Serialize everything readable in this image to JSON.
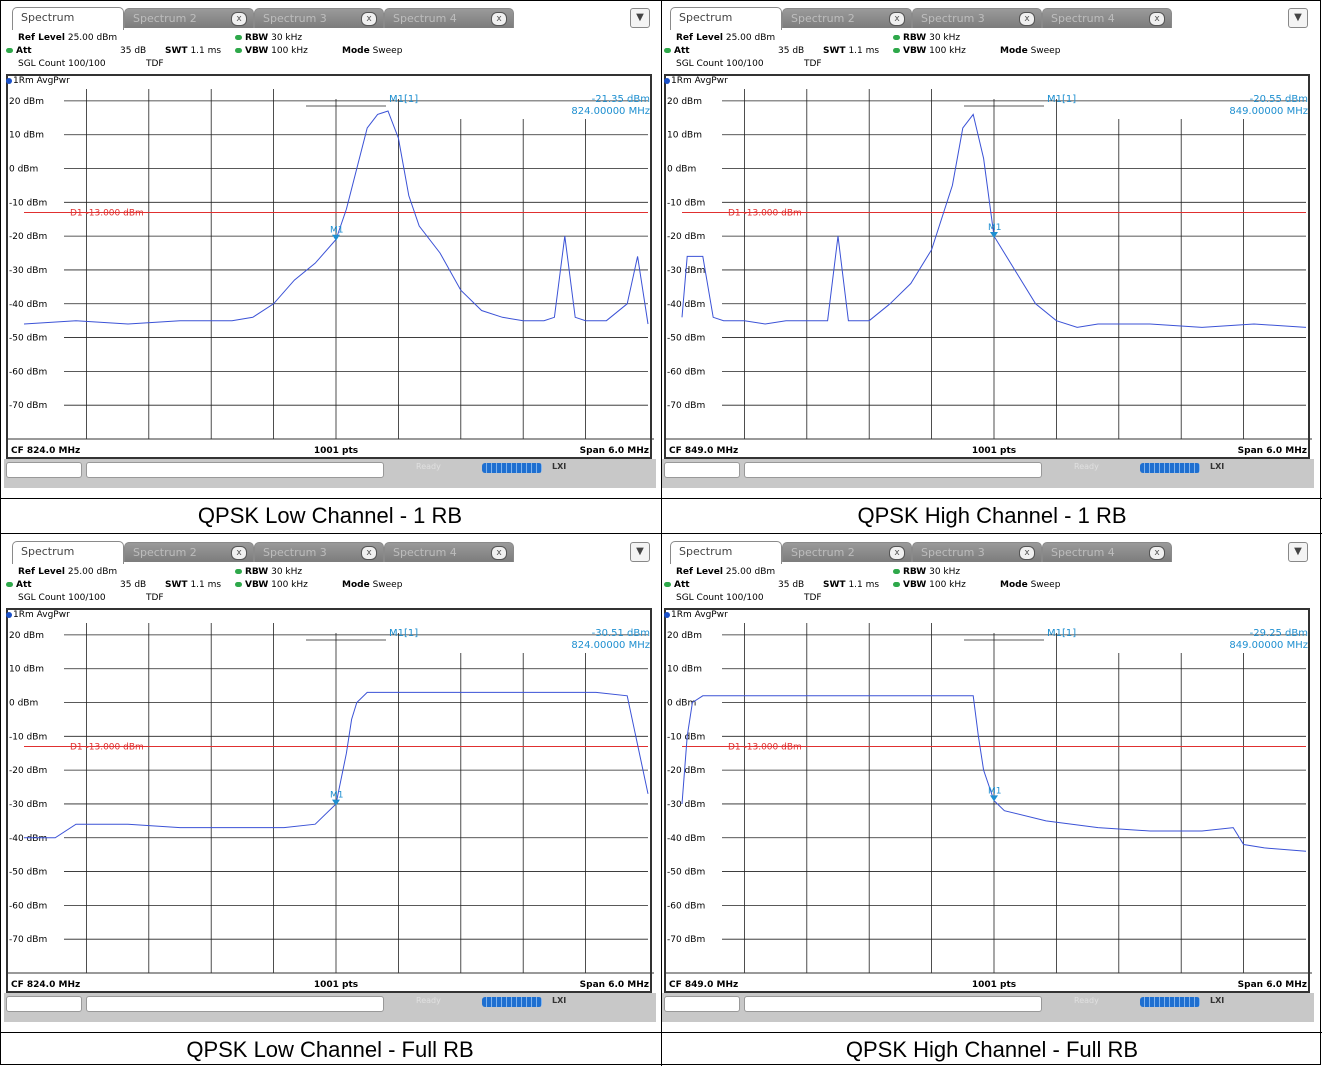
{
  "captions": [
    "QPSK Low Channel - 1 RB",
    "QPSK High Channel - 1 RB",
    "QPSK Low Channel - Full RB",
    "QPSK High Channel - Full RB"
  ],
  "tabs": [
    "Spectrum",
    "Spectrum 2",
    "Spectrum 3",
    "Spectrum 4"
  ],
  "params": {
    "ref_level_label": "Ref Level",
    "ref_level_value": "25.00 dBm",
    "att_label": "Att",
    "att_value": "35 dB",
    "swt_label": "SWT",
    "swt_value": "1.1 ms",
    "rbw_label": "RBW",
    "rbw_value": "30 kHz",
    "vbw_label": "VBW",
    "vbw_value": "100 kHz",
    "mode_label": "Mode",
    "mode_value": "Sweep",
    "sgl_count": "SGL Count 100/100",
    "tdf": "TDF"
  },
  "trace_label": "1Rm AvgPwr",
  "line_label": "D1 -13.000 dBm",
  "marker_name": "M1",
  "marker_readout_label": "M1[1]",
  "footer_points": "1001 pts",
  "footer_span": "Span 6.0 MHz",
  "status_ready": "Ready",
  "status_lxi": "LXI",
  "colors": {
    "trace": "#3b52d6",
    "display_line": "#e03030",
    "marker": "#1e8fd0",
    "grid": "#000000"
  },
  "chart_data": [
    {
      "type": "line",
      "title": "QPSK Low Channel - 1 RB",
      "center_freq": "CF 824.0 MHz",
      "span_mhz": 6.0,
      "xlim": [
        821.0,
        827.0
      ],
      "ylim": [
        -80,
        25
      ],
      "yticks": [
        "20 dBm",
        "10 dBm",
        "0 dBm",
        "-10 dBm",
        "-20 dBm",
        "-30 dBm",
        "-40 dBm",
        "-50 dBm",
        "-60 dBm",
        "-70 dBm"
      ],
      "display_line_dbm": -13.0,
      "marker": {
        "freq_mhz": 824.0,
        "level": "-21.35 dBm",
        "freq": "824.00000 MHz",
        "y": -21.35
      },
      "series": [
        {
          "x": [
            821.0,
            821.5,
            822.0,
            822.5,
            823.0,
            823.2,
            823.4,
            823.6,
            823.8,
            824.0,
            824.1,
            824.2,
            824.3,
            824.4,
            824.5,
            824.6,
            824.7,
            824.8,
            825.0,
            825.2,
            825.4,
            825.6,
            825.8,
            826.0,
            826.1,
            826.2,
            826.3,
            826.4,
            826.6,
            826.8,
            826.9,
            827.0
          ],
          "y": [
            -46,
            -45,
            -46,
            -45,
            -45,
            -44,
            -40,
            -33,
            -28,
            -21,
            -12,
            0,
            12,
            16,
            17,
            9,
            -8,
            -17,
            -25,
            -36,
            -42,
            -44,
            -45,
            -45,
            -44,
            -20,
            -44,
            -45,
            -45,
            -40,
            -26,
            -46
          ]
        }
      ]
    },
    {
      "type": "line",
      "title": "QPSK High Channel - 1 RB",
      "center_freq": "CF 849.0 MHz",
      "span_mhz": 6.0,
      "xlim": [
        846.0,
        852.0
      ],
      "ylim": [
        -80,
        25
      ],
      "yticks": [
        "20 dBm",
        "10 dBm",
        "0 dBm",
        "-10 dBm",
        "-20 dBm",
        "-30 dBm",
        "-40 dBm",
        "-50 dBm",
        "-60 dBm",
        "-70 dBm"
      ],
      "display_line_dbm": -13.0,
      "marker": {
        "freq_mhz": 849.0,
        "level": "-20.55 dBm",
        "freq": "849.00000 MHz",
        "y": -20.55
      },
      "series": [
        {
          "x": [
            846.0,
            846.05,
            846.2,
            846.3,
            846.4,
            846.6,
            846.8,
            847.0,
            847.2,
            847.4,
            847.5,
            847.6,
            847.8,
            848.0,
            848.2,
            848.4,
            848.6,
            848.7,
            848.8,
            848.9,
            849.0,
            849.2,
            849.4,
            849.6,
            849.8,
            850.0,
            850.5,
            851.0,
            851.5,
            852.0
          ],
          "y": [
            -44,
            -26,
            -26,
            -44,
            -45,
            -45,
            -46,
            -45,
            -45,
            -45,
            -20,
            -45,
            -45,
            -40,
            -34,
            -24,
            -5,
            12,
            16,
            3,
            -20,
            -30,
            -40,
            -45,
            -47,
            -46,
            -46,
            -47,
            -46,
            -47
          ]
        }
      ]
    },
    {
      "type": "line",
      "title": "QPSK Low Channel - Full RB",
      "center_freq": "CF 824.0 MHz",
      "span_mhz": 6.0,
      "xlim": [
        821.0,
        827.0
      ],
      "ylim": [
        -80,
        25
      ],
      "yticks": [
        "20 dBm",
        "10 dBm",
        "0 dBm",
        "-10 dBm",
        "-20 dBm",
        "-30 dBm",
        "-40 dBm",
        "-50 dBm",
        "-60 dBm",
        "-70 dBm"
      ],
      "display_line_dbm": -13.0,
      "marker": {
        "freq_mhz": 824.0,
        "level": "-30.51 dBm",
        "freq": "824.00000 MHz",
        "y": -30.51
      },
      "series": [
        {
          "x": [
            821.0,
            821.3,
            821.5,
            822.0,
            822.5,
            823.0,
            823.5,
            823.8,
            824.0,
            824.1,
            824.15,
            824.2,
            824.3,
            825.0,
            825.5,
            826.0,
            826.5,
            826.8,
            827.0
          ],
          "y": [
            -40,
            -40,
            -36,
            -36,
            -37,
            -37,
            -37,
            -36,
            -30,
            -15,
            -5,
            0,
            3,
            3,
            3,
            3,
            3,
            2,
            -27
          ]
        }
      ]
    },
    {
      "type": "line",
      "title": "QPSK High Channel - Full RB",
      "center_freq": "CF 849.0 MHz",
      "span_mhz": 6.0,
      "xlim": [
        846.0,
        852.0
      ],
      "ylim": [
        -80,
        25
      ],
      "yticks": [
        "20 dBm",
        "10 dBm",
        "0 dBm",
        "-10 dBm",
        "-20 dBm",
        "-30 dBm",
        "-40 dBm",
        "-50 dBm",
        "-60 dBm",
        "-70 dBm"
      ],
      "display_line_dbm": -13.0,
      "marker": {
        "freq_mhz": 849.0,
        "level": "-29.25 dBm",
        "freq": "849.00000 MHz",
        "y": -29.25
      },
      "series": [
        {
          "x": [
            846.0,
            846.05,
            846.1,
            846.2,
            846.5,
            847.0,
            847.5,
            848.0,
            848.5,
            848.8,
            848.85,
            848.9,
            849.0,
            849.1,
            849.5,
            850.0,
            850.5,
            851.0,
            851.3,
            851.4,
            851.6,
            852.0
          ],
          "y": [
            -30,
            -10,
            0,
            2,
            2,
            2,
            2,
            2,
            2,
            2,
            -10,
            -20,
            -29,
            -32,
            -35,
            -37,
            -38,
            -38,
            -37,
            -42,
            -43,
            -44
          ]
        }
      ]
    }
  ]
}
